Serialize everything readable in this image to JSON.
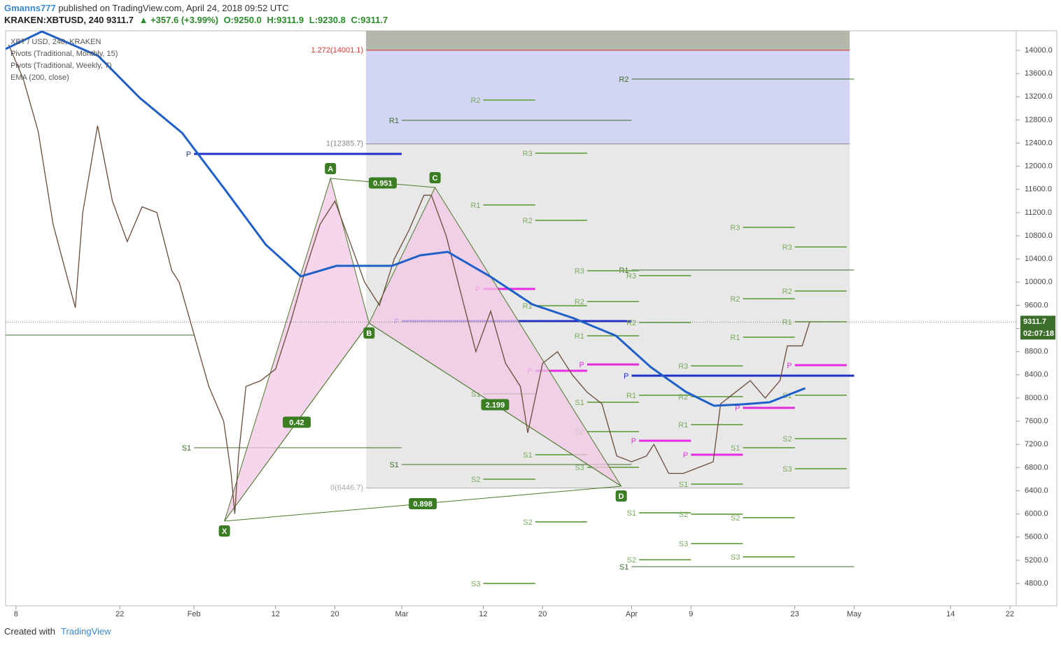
{
  "header": {
    "publisher": "Gmanns777",
    "published": "published on TradingView.com, April 24, 2018 09:52 UTC",
    "symbol": "KRAKEN:XBTUSD, 240",
    "last": "9311.7",
    "change": "▲ +357.6 (+3.99%)",
    "open": "O:9250.0",
    "high": "H:9311.9",
    "low": "L:9230.8",
    "close": "C:9311.7"
  },
  "footer": {
    "created": "Created with",
    "brand": "TradingView"
  },
  "chart_data": {
    "type": "line",
    "xlim": [
      6.6,
      142.85
    ],
    "ylim": [
      4414,
      14338
    ],
    "xticks": [
      {
        "value": 8,
        "label": "8"
      },
      {
        "value": 22,
        "label": "22"
      },
      {
        "value": 32,
        "label": "Feb"
      },
      {
        "value": 43,
        "label": "12"
      },
      {
        "value": 51,
        "label": "20"
      },
      {
        "value": 60,
        "label": "Mar"
      },
      {
        "value": 71,
        "label": "12"
      },
      {
        "value": 79,
        "label": "20"
      },
      {
        "value": 91,
        "label": "Apr"
      },
      {
        "value": 99,
        "label": "9"
      },
      {
        "value": 113,
        "label": "23"
      },
      {
        "value": 121,
        "label": "May"
      },
      {
        "value": 134,
        "label": "14"
      },
      {
        "value": 142,
        "label": "22"
      }
    ],
    "yticks": [
      {
        "value": 4800,
        "label": "4800.0"
      },
      {
        "value": 5200,
        "label": "5200.0"
      },
      {
        "value": 5600,
        "label": "5600.0"
      },
      {
        "value": 6000,
        "label": "6000.0"
      },
      {
        "value": 6400,
        "label": "6400.0"
      },
      {
        "value": 6800,
        "label": "6800.0"
      },
      {
        "value": 7200,
        "label": "7200.0"
      },
      {
        "value": 7600,
        "label": "7600.0"
      },
      {
        "value": 8000,
        "label": "8000.0"
      },
      {
        "value": 8400,
        "label": "8400.0"
      },
      {
        "value": 8800,
        "label": "8800.0"
      },
      {
        "value": 9200,
        "label": "9200.0"
      },
      {
        "value": 9600,
        "label": "9600.0"
      },
      {
        "value": 10000,
        "label": "10000.0"
      },
      {
        "value": 10400,
        "label": "10400.0"
      },
      {
        "value": 10800,
        "label": "10800.0"
      },
      {
        "value": 11200,
        "label": "11200.0"
      },
      {
        "value": 11600,
        "label": "11600.0"
      },
      {
        "value": 12000,
        "label": "12000.0"
      },
      {
        "value": 12400,
        "label": "12400.0"
      },
      {
        "value": 12800,
        "label": "12800.0"
      },
      {
        "value": 13200,
        "label": "13200.0"
      },
      {
        "value": 13600,
        "label": "13600.0"
      },
      {
        "value": 14000,
        "label": "14000.0"
      }
    ],
    "series": [
      {
        "name": "XBT / USD, 240, KRAKEN",
        "color": "#6b4a3a",
        "x": [
          7,
          9,
          11,
          13,
          16,
          17,
          19,
          21,
          23,
          25,
          27,
          29,
          30,
          32,
          34,
          36,
          37,
          37.5,
          38,
          39,
          41,
          43,
          45,
          47,
          49,
          51,
          53,
          55,
          57,
          59,
          61,
          63,
          64,
          66,
          68,
          70,
          72,
          74,
          76,
          77,
          79,
          81,
          83,
          85,
          87,
          89,
          91,
          93,
          94,
          96,
          98,
          100,
          102,
          103,
          105,
          107,
          109,
          111,
          112,
          114,
          115
        ],
        "values": [
          14100,
          13500,
          12600,
          11000,
          9557,
          11200,
          12700,
          11400,
          10700,
          11300,
          11200,
          10200,
          10000,
          9100,
          8200,
          7600,
          6700,
          6000,
          7000,
          8200,
          8300,
          8500,
          9300,
          10200,
          11000,
          11400,
          10700,
          10000,
          9600,
          10400,
          10900,
          11500,
          11500,
          10800,
          9800,
          8800,
          9500,
          8600,
          8200,
          7400,
          8600,
          8800,
          8400,
          8100,
          7900,
          7000,
          6900,
          7000,
          7200,
          6700,
          6700,
          6800,
          6900,
          7900,
          8100,
          8300,
          8000,
          8300,
          8900,
          8900,
          9311.7
        ]
      },
      {
        "name": "EMA (200, close)",
        "color": "#1f5fc8",
        "x": [
          6.6,
          11.5,
          19.1,
          24.7,
          30.4,
          36.1,
          41.7,
          46.4,
          51.2,
          54.9,
          58.7,
          62.5,
          66.2,
          71.9,
          77.6,
          83.2,
          88.9,
          93.6,
          98.3,
          102.1,
          105.9,
          109.6,
          114.4
        ],
        "values": [
          14024,
          14326,
          13903,
          13179,
          12575,
          11610,
          10644,
          10100,
          10281,
          10281,
          10281,
          10463,
          10523,
          10100,
          9617,
          9376,
          9074,
          8531,
          8108,
          7867,
          7891,
          7927,
          8169
        ]
      }
    ],
    "last_price": 9311.7,
    "countdown": "02:07:18",
    "last_color": "#3b6e2a",
    "fib": {
      "x0": 55.2,
      "x1": 120.4,
      "top_color": "#b3b8ab",
      "band_color": "#d3d5f5",
      "base_color": "#e8e8e8",
      "levels": [
        {
          "label": "1.272(14001.1)",
          "value": 14001.1,
          "color": "#d33"
        },
        {
          "label": "1(12385.7)",
          "value": 12385.7,
          "color": "#888"
        },
        {
          "label": "0(6446.7)",
          "value": 6446.7,
          "color": "#aaa"
        }
      ]
    },
    "pattern": {
      "fill": "#f3c8e6",
      "line": "#4c7a2c",
      "box": "#3a7d22",
      "points": [
        {
          "label": "X",
          "x": 36.1,
          "y": 5875
        },
        {
          "label": "A",
          "x": 50.4,
          "y": 11790
        },
        {
          "label": "B",
          "x": 55.6,
          "y": 9292
        },
        {
          "label": "C",
          "x": 64.5,
          "y": 11634
        },
        {
          "label": "D",
          "x": 89.6,
          "y": 6479
        }
      ],
      "ratios": [
        0.42,
        0.951,
        2.199,
        0.898
      ]
    },
    "pivots": [
      {
        "name": "Pivots (Traditional, Monthly, 15)",
        "color": "#3d6b2c",
        "p_color": "#1f2fc8",
        "levels": [
          {
            "label": null,
            "value": 9086,
            "x0": 1,
            "x1": 32
          },
          {
            "label": "P",
            "value": 12213,
            "x0": 32,
            "x1": 60
          },
          {
            "label": "S1",
            "value": 7143,
            "x0": 32,
            "x1": 60
          },
          {
            "label": "R1",
            "value": 12793,
            "x0": 60,
            "x1": 91
          },
          {
            "label": "P",
            "value": 9328,
            "x0": 60,
            "x1": 91
          },
          {
            "label": "S1",
            "value": 6853,
            "x0": 60,
            "x1": 91
          },
          {
            "label": "R2",
            "value": 13505,
            "x0": 91,
            "x1": 121
          },
          {
            "label": "R1",
            "value": 10209,
            "x0": 91,
            "x1": 121
          },
          {
            "label": "P",
            "value": 8386,
            "x0": 91,
            "x1": 121
          },
          {
            "label": "S1",
            "value": 5090,
            "x0": 91,
            "x1": 121
          }
        ]
      },
      {
        "name": "Pivots (Traditional, Weekly, 7)",
        "color": "#7aab5e",
        "p_color": "#e52de0",
        "levels": [
          {
            "label": "R2",
            "value": 13143,
            "x0": 71,
            "x1": 78
          },
          {
            "label": "R1",
            "value": 11332,
            "x0": 71,
            "x1": 78
          },
          {
            "label": "P",
            "value": 9883,
            "x0": 71,
            "x1": 78
          },
          {
            "label": "S1",
            "value": 8072,
            "x0": 71,
            "x1": 78
          },
          {
            "label": "S2",
            "value": 6599,
            "x0": 71,
            "x1": 78
          },
          {
            "label": "S3",
            "value": 4800,
            "x0": 71,
            "x1": 78
          },
          {
            "label": "R3",
            "value": 12225,
            "x0": 78,
            "x1": 85
          },
          {
            "label": "R2",
            "value": 11066,
            "x0": 78,
            "x1": 85
          },
          {
            "label": "R1",
            "value": 9593,
            "x0": 78,
            "x1": 85
          },
          {
            "label": "P",
            "value": 8471,
            "x0": 78,
            "x1": 85
          },
          {
            "label": "S1",
            "value": 7022,
            "x0": 78,
            "x1": 85
          },
          {
            "label": "S2",
            "value": 5863,
            "x0": 78,
            "x1": 85
          },
          {
            "label": "R3",
            "value": 10197,
            "x0": 85,
            "x1": 92
          },
          {
            "label": "R2",
            "value": 9666,
            "x0": 85,
            "x1": 92
          },
          {
            "label": "R1",
            "value": 9074,
            "x0": 85,
            "x1": 92
          },
          {
            "label": "P",
            "value": 8579,
            "x0": 85,
            "x1": 92
          },
          {
            "label": "S1",
            "value": 7927,
            "x0": 85,
            "x1": 92
          },
          {
            "label": "S2",
            "value": 7420,
            "x0": 85,
            "x1": 92
          },
          {
            "label": "S3",
            "value": 6805,
            "x0": 85,
            "x1": 92
          },
          {
            "label": "R3",
            "value": 10113,
            "x0": 92,
            "x1": 99
          },
          {
            "label": "R2",
            "value": 9304,
            "x0": 92,
            "x1": 99
          },
          {
            "label": "R1",
            "value": 8048,
            "x0": 92,
            "x1": 99
          },
          {
            "label": "P",
            "value": 7263,
            "x0": 92,
            "x1": 99
          },
          {
            "label": "S1",
            "value": 6020,
            "x0": 92,
            "x1": 99
          },
          {
            "label": "S2",
            "value": 5210,
            "x0": 92,
            "x1": 99
          },
          {
            "label": "R3",
            "value": 8555,
            "x0": 99,
            "x1": 106
          },
          {
            "label": "R2",
            "value": 8024,
            "x0": 99,
            "x1": 106
          },
          {
            "label": "R1",
            "value": 7541,
            "x0": 99,
            "x1": 106
          },
          {
            "label": "P",
            "value": 7022,
            "x0": 99,
            "x1": 106
          },
          {
            "label": "S1",
            "value": 6515,
            "x0": 99,
            "x1": 106
          },
          {
            "label": "S2",
            "value": 5996,
            "x0": 99,
            "x1": 106
          },
          {
            "label": "S3",
            "value": 5489,
            "x0": 99,
            "x1": 106
          },
          {
            "label": "R3",
            "value": 10945,
            "x0": 106,
            "x1": 113
          },
          {
            "label": "R2",
            "value": 9714,
            "x0": 106,
            "x1": 113
          },
          {
            "label": "R1",
            "value": 9050,
            "x0": 106,
            "x1": 113
          },
          {
            "label": "P",
            "value": 7831,
            "x0": 106,
            "x1": 113
          },
          {
            "label": "S1",
            "value": 7143,
            "x0": 106,
            "x1": 113
          },
          {
            "label": "S2",
            "value": 5935,
            "x0": 106,
            "x1": 113
          },
          {
            "label": "S3",
            "value": 5259,
            "x0": 106,
            "x1": 113
          },
          {
            "label": "R3",
            "value": 10607,
            "x0": 113,
            "x1": 120
          },
          {
            "label": "R2",
            "value": 9847,
            "x0": 113,
            "x1": 120
          },
          {
            "label": "R1",
            "value": 9316,
            "x0": 113,
            "x1": 120
          },
          {
            "label": "P",
            "value": 8567,
            "x0": 113,
            "x1": 120
          },
          {
            "label": "S1",
            "value": 8048,
            "x0": 113,
            "x1": 120
          },
          {
            "label": "S2",
            "value": 7300,
            "x0": 113,
            "x1": 120
          },
          {
            "label": "S3",
            "value": 6780,
            "x0": 113,
            "x1": 120
          }
        ]
      }
    ]
  }
}
